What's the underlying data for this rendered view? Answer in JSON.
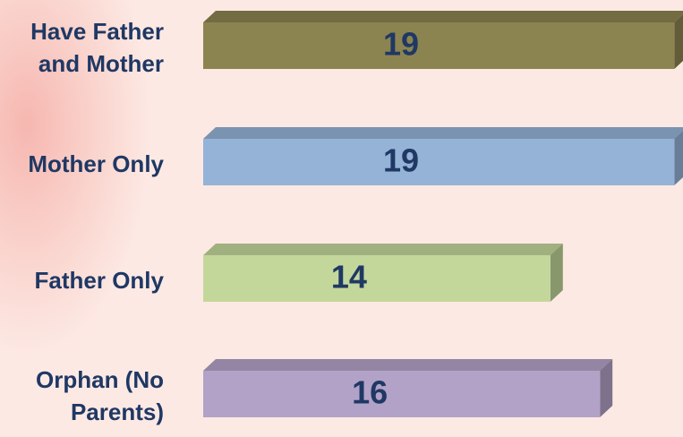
{
  "chart_data": {
    "type": "bar",
    "orientation": "horizontal",
    "categories": [
      "Have Father and Mother",
      "Mother Only",
      "Father Only",
      "Orphan (No Parents)"
    ],
    "values": [
      19,
      19,
      14,
      16
    ],
    "colors": [
      "#8c8450",
      "#95b3d7",
      "#c4d79b",
      "#b3a2c7"
    ]
  }
}
